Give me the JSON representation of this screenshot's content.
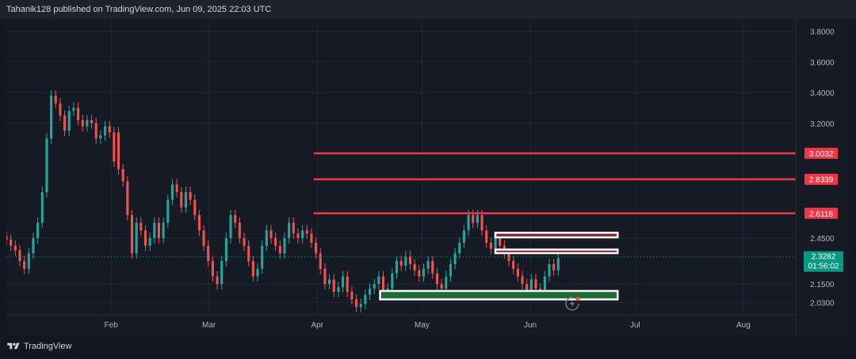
{
  "header": {
    "publish_line": "Tahanik128 published on TradingView.com, Jun 09, 2025 22:03 UTC"
  },
  "footer": {
    "brand": "TradingView",
    "logo_icon": "tradingview-logo-icon"
  },
  "colors": {
    "background": "#161a25",
    "up": "#26a69a",
    "down": "#ef5350",
    "resistance_line": "#f23645",
    "supply_zone_fill": "#8c2330",
    "demand_zone_fill": "#1f6b34",
    "zone_border": "#ffffff",
    "current_price_label": "#089981"
  },
  "chart_data": {
    "type": "candlestick",
    "x_axis": {
      "ticks": [
        "Feb",
        "Mar",
        "Apr",
        "May",
        "Jun",
        "Jul",
        "Aug"
      ],
      "range": [
        "2025-01-02",
        "2025-08-16"
      ]
    },
    "y_axis": {
      "ticks": [
        "2.0300",
        "2.1500",
        "2.3282",
        "2.4500",
        "2.6118",
        "2.8339",
        "3.0032",
        "3.2000",
        "3.4000",
        "3.6000",
        "3.8000"
      ],
      "range": [
        1.95,
        3.88
      ]
    },
    "series": [
      {
        "values": [
          [
            2.46,
            2.44
          ],
          [
            2.44,
            2.4
          ],
          [
            2.4,
            2.37
          ],
          [
            2.37,
            2.3
          ],
          [
            2.3,
            2.25
          ],
          [
            2.25,
            2.35
          ],
          [
            2.35,
            2.45
          ],
          [
            2.45,
            2.55
          ],
          [
            2.55,
            2.75
          ],
          [
            2.75,
            3.1
          ],
          [
            3.1,
            3.38
          ],
          [
            3.38,
            3.33
          ],
          [
            3.33,
            3.25
          ],
          [
            3.25,
            3.15
          ],
          [
            3.15,
            3.28
          ],
          [
            3.28,
            3.3
          ],
          [
            3.3,
            3.22
          ],
          [
            3.22,
            3.18
          ],
          [
            3.18,
            3.22
          ],
          [
            3.22,
            3.2
          ],
          [
            3.2,
            3.1
          ],
          [
            3.1,
            3.12
          ],
          [
            3.12,
            3.18
          ],
          [
            3.18,
            3.14
          ],
          [
            3.14,
            2.95
          ],
          [
            3.14,
            2.9
          ],
          [
            2.9,
            2.82
          ],
          [
            2.82,
            2.6
          ],
          [
            2.6,
            2.35
          ],
          [
            2.35,
            2.55
          ],
          [
            2.55,
            2.5
          ],
          [
            2.5,
            2.4
          ],
          [
            2.4,
            2.45
          ],
          [
            2.45,
            2.55
          ],
          [
            2.55,
            2.45
          ],
          [
            2.45,
            2.55
          ],
          [
            2.55,
            2.7
          ],
          [
            2.7,
            2.8
          ],
          [
            2.8,
            2.75
          ],
          [
            2.75,
            2.65
          ],
          [
            2.65,
            2.75
          ],
          [
            2.75,
            2.7
          ],
          [
            2.7,
            2.6
          ],
          [
            2.6,
            2.5
          ],
          [
            2.5,
            2.4
          ],
          [
            2.4,
            2.3
          ],
          [
            2.3,
            2.2
          ],
          [
            2.2,
            2.15
          ],
          [
            2.15,
            2.3
          ],
          [
            2.3,
            2.45
          ],
          [
            2.45,
            2.6
          ],
          [
            2.6,
            2.55
          ],
          [
            2.55,
            2.45
          ],
          [
            2.45,
            2.4
          ],
          [
            2.4,
            2.3
          ],
          [
            2.3,
            2.2
          ],
          [
            2.2,
            2.25
          ],
          [
            2.25,
            2.4
          ],
          [
            2.4,
            2.5
          ],
          [
            2.5,
            2.45
          ],
          [
            2.45,
            2.4
          ],
          [
            2.4,
            2.35
          ],
          [
            2.35,
            2.45
          ],
          [
            2.45,
            2.55
          ],
          [
            2.55,
            2.48
          ],
          [
            2.48,
            2.45
          ],
          [
            2.45,
            2.5
          ],
          [
            2.5,
            2.48
          ],
          [
            2.48,
            2.42
          ],
          [
            2.42,
            2.35
          ],
          [
            2.35,
            2.25
          ],
          [
            2.25,
            2.15
          ],
          [
            2.15,
            2.18
          ],
          [
            2.18,
            2.1
          ],
          [
            2.1,
            2.13
          ],
          [
            2.13,
            2.2
          ],
          [
            2.2,
            2.1
          ],
          [
            2.1,
            2.05
          ],
          [
            2.05,
            2.0
          ],
          [
            2.0,
            2.02
          ],
          [
            2.02,
            2.08
          ],
          [
            2.08,
            2.12
          ],
          [
            2.12,
            2.15
          ],
          [
            2.15,
            2.2
          ],
          [
            2.2,
            2.08
          ],
          [
            2.08,
            2.12
          ],
          [
            2.12,
            2.22
          ],
          [
            2.22,
            2.3
          ],
          [
            2.3,
            2.27
          ],
          [
            2.27,
            2.33
          ],
          [
            2.33,
            2.28
          ],
          [
            2.28,
            2.24
          ],
          [
            2.24,
            2.2
          ],
          [
            2.2,
            2.25
          ],
          [
            2.25,
            2.3
          ],
          [
            2.3,
            2.22
          ],
          [
            2.22,
            2.15
          ],
          [
            2.15,
            2.12
          ],
          [
            2.12,
            2.2
          ],
          [
            2.2,
            2.28
          ],
          [
            2.28,
            2.35
          ],
          [
            2.35,
            2.42
          ],
          [
            2.42,
            2.5
          ],
          [
            2.5,
            2.6
          ],
          [
            2.6,
            2.55
          ],
          [
            2.55,
            2.6
          ],
          [
            2.6,
            2.5
          ],
          [
            2.5,
            2.42
          ],
          [
            2.42,
            2.38
          ],
          [
            2.38,
            2.45
          ],
          [
            2.45,
            2.4
          ],
          [
            2.4,
            2.35
          ],
          [
            2.35,
            2.3
          ],
          [
            2.3,
            2.25
          ],
          [
            2.25,
            2.2
          ],
          [
            2.2,
            2.15
          ],
          [
            2.15,
            2.1
          ],
          [
            2.1,
            2.18
          ],
          [
            2.18,
            2.12
          ],
          [
            2.12,
            2.1
          ],
          [
            2.1,
            2.2
          ],
          [
            2.2,
            2.28
          ],
          [
            2.28,
            2.24
          ],
          [
            2.24,
            2.32
          ]
        ]
      }
    ],
    "levels": [
      {
        "label": "3.0032",
        "value": 3.0032,
        "start": "2025-03-31"
      },
      {
        "label": "2.8339",
        "value": 2.8339,
        "start": "2025-03-31"
      },
      {
        "label": "2.6118",
        "value": 2.6118,
        "start": "2025-03-31"
      }
    ],
    "zones": [
      {
        "kind": "supply",
        "top": 2.485,
        "bottom": 2.455,
        "start": "2025-05-22",
        "end": "2025-06-26"
      },
      {
        "kind": "supply",
        "top": 2.375,
        "bottom": 2.352,
        "start": "2025-05-22",
        "end": "2025-06-26"
      },
      {
        "kind": "demand",
        "top": 2.105,
        "bottom": 2.05,
        "start": "2025-04-19",
        "end": "2025-06-26"
      }
    ],
    "current_price": {
      "label": "2.3282",
      "value": 2.3282,
      "countdown": "01:56:02"
    },
    "watermark_icon": "lightning-replay-icon"
  }
}
